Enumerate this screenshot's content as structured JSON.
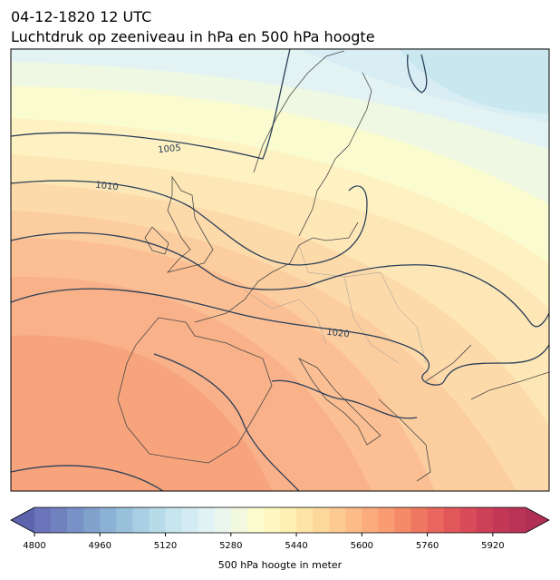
{
  "header": {
    "title": "04-12-1820 12 UTC",
    "subtitle": "Luchtdruk op zeeniveau in hPa en 500 hPa hoogte"
  },
  "map": {
    "contour_labels": [
      1005,
      1010,
      1020
    ],
    "contour_color": "#2b3f58",
    "coastline_color": "#4a4a4a"
  },
  "colorbar": {
    "label": "500 hPa hoogte in meter",
    "lim": [
      4800,
      6000
    ],
    "ticks": [
      4800,
      4960,
      5120,
      5280,
      5440,
      5600,
      5760,
      5920
    ],
    "under_color": "#5d64ad",
    "over_color": "#b12e55",
    "colors": [
      "#6a74b8",
      "#7081bf",
      "#7891c6",
      "#80a1cc",
      "#8bb1d4",
      "#99c1dc",
      "#a8cfe3",
      "#b8dbea",
      "#c6e5ef",
      "#d3ecf3",
      "#e0f2f3",
      "#eaf6ee",
      "#f3f9de",
      "#fbfcce",
      "#fef7c1",
      "#feefb3",
      "#fee5a7",
      "#fdd89c",
      "#fdcb92",
      "#fcbc87",
      "#fbac7c",
      "#f99c72",
      "#f48a68",
      "#ef7862",
      "#e9675e",
      "#e2585a",
      "#d94b58",
      "#cd4057",
      "#c23856",
      "#b83356"
    ]
  }
}
